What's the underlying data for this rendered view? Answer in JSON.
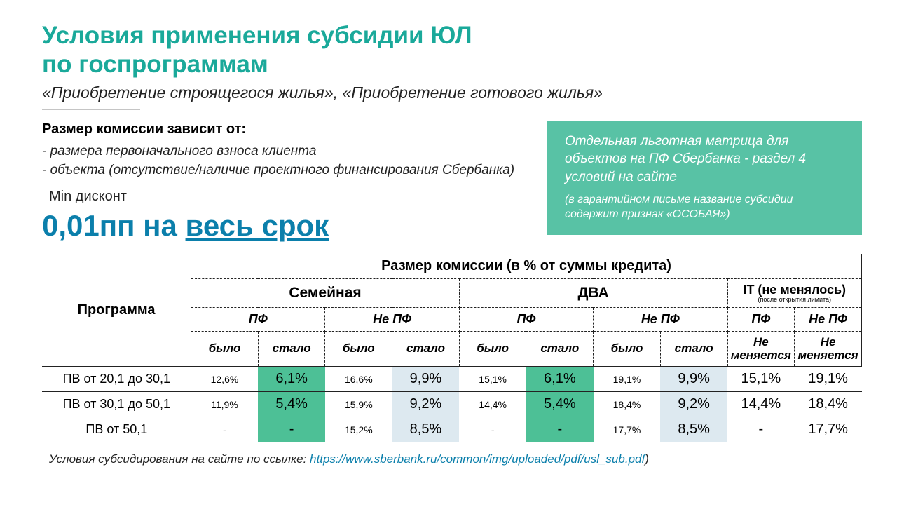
{
  "title_line1": "Условия применения субсидии ЮЛ",
  "title_line2": "по госпрограммам",
  "subtitle": "«Приобретение строящегося жилья», «Приобретение готового жилья»",
  "depends": {
    "heading": "Размер комиссии зависит от:",
    "item1": "- размера первоначального взноса клиента",
    "item2": "- объекта (отсутствие/наличие проектного финансирования Сбербанка)"
  },
  "min_discount_label": "Min дисконт",
  "big_rate_plain": "0,01пп на ",
  "big_rate_underline": "весь срок",
  "callout": {
    "main": "Отдельная льготная матрица для объектов на ПФ Сбербанка - раздел 4 условий на сайте",
    "sub": "(в гарантийном письме название субсидии содержит признак «ОСОБАЯ»)"
  },
  "table": {
    "main_header": "Размер комиссии (в % от суммы кредита)",
    "program_label": "Программа",
    "groups": {
      "family": "Семейная",
      "dva": "ДВА",
      "it": "IT  (не менялось)",
      "it_note": "(после открытия лимита)"
    },
    "sub": {
      "pf": "ПФ",
      "nopf": "Не ПФ"
    },
    "was": "было",
    "now": "стало",
    "no_change": "Не меняется",
    "rows": [
      {
        "label": "ПВ от 20,1 до 30,1",
        "fam_pf_was": "12,6%",
        "fam_pf_now": "6,1%",
        "fam_no_was": "16,6%",
        "fam_no_now": "9,9%",
        "dva_pf_was": "15,1%",
        "dva_pf_now": "6,1%",
        "dva_no_was": "19,1%",
        "dva_no_now": "9,9%",
        "it_pf": "15,1%",
        "it_no": "19,1%"
      },
      {
        "label": "ПВ от 30,1 до 50,1",
        "fam_pf_was": "11,9%",
        "fam_pf_now": "5,4%",
        "fam_no_was": "15,9%",
        "fam_no_now": "9,2%",
        "dva_pf_was": "14,4%",
        "dva_pf_now": "5,4%",
        "dva_no_was": "18,4%",
        "dva_no_now": "9,2%",
        "it_pf": "14,4%",
        "it_no": "18,4%"
      },
      {
        "label": "ПВ от 50,1",
        "fam_pf_was": "-",
        "fam_pf_now": "-",
        "fam_no_was": "15,2%",
        "fam_no_now": "8,5%",
        "dva_pf_was": "-",
        "dva_pf_now": "-",
        "dva_no_was": "17,7%",
        "dva_no_now": "8,5%",
        "it_pf": "-",
        "it_no": "17,7%"
      }
    ]
  },
  "footnote": {
    "prefix": "Условия субсидирования на сайте по ссылке: ",
    "link_text": "https://www.sberbank.ru/common/img/uploaded/pdf/usl_sub.pdf",
    "suffix": ")"
  },
  "colors": {
    "accent_teal": "#1aa99a",
    "accent_blue": "#0b7fab",
    "callout_bg": "#58c2a5",
    "cell_green": "#4dc096",
    "cell_blue": "#dde9f0"
  }
}
